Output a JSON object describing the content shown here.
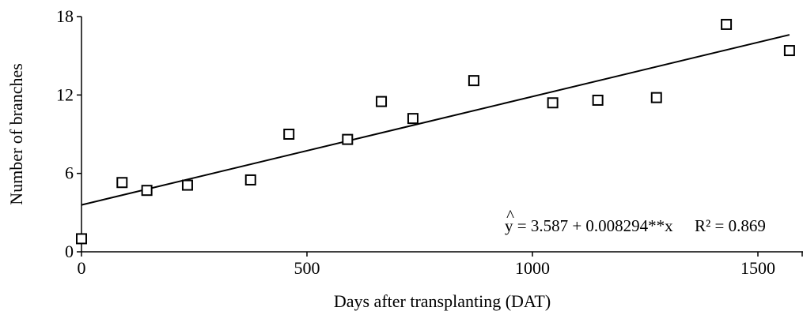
{
  "chart_data": {
    "type": "scatter",
    "xlabel": "Days after transplanting (DAT)",
    "ylabel": "Number of branches",
    "xlim": [
      0,
      1600
    ],
    "ylim": [
      0,
      18
    ],
    "xticks": [
      0,
      500,
      1000,
      1500
    ],
    "yticks": [
      0,
      6,
      12,
      18
    ],
    "xtick_labels": [
      "0",
      "500",
      "1000",
      "1500"
    ],
    "ytick_labels": [
      "0",
      "6",
      "12",
      "18"
    ],
    "grid": false,
    "marker": "open-square",
    "color": "#000000",
    "series": [
      {
        "x": [
          0,
          90,
          145,
          235,
          375,
          460,
          590,
          665,
          735,
          870,
          1045,
          1145,
          1275,
          1430,
          1570
        ],
        "y": [
          1.0,
          5.3,
          4.7,
          5.1,
          5.5,
          9.0,
          8.6,
          11.5,
          10.2,
          13.1,
          11.4,
          11.6,
          11.8,
          17.4,
          15.4
        ]
      }
    ],
    "regression": {
      "intercept": 3.587,
      "slope": 0.008294,
      "x_range": [
        0,
        1570
      ]
    },
    "annotation": {
      "hat": "^",
      "equation": "y = 3.587 + 0.008294**x",
      "r2": "R² = 0.869"
    }
  }
}
